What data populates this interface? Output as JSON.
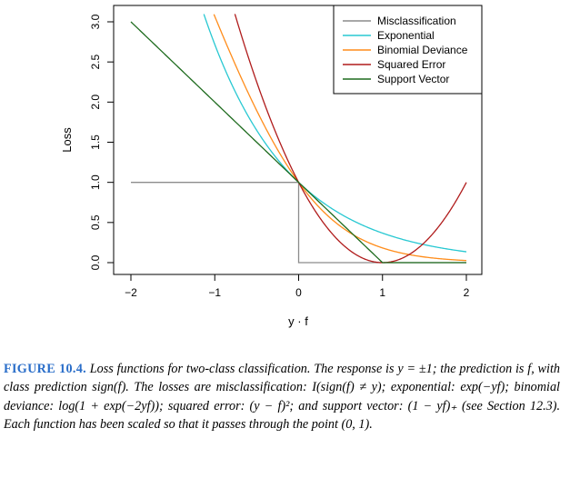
{
  "figure": {
    "label": "FIGURE 10.4.",
    "caption": "Loss functions for two-class classification. The response is y = ±1; the prediction is f, with class prediction sign(f). The losses are misclassification: I(sign(f) ≠ y); exponential: exp(−yf); binomial deviance: log(1 + exp(−2yf)); squared error: (y − f)²; and support vector: (1 − yf)₊ (see Section 12.3). Each function has been scaled so that it passes through the point (0, 1)."
  },
  "chart_data": {
    "type": "line",
    "title": "",
    "xlabel": "y · f",
    "ylabel": "Loss",
    "xlim": [
      -2,
      2
    ],
    "ylim": [
      0,
      3.0
    ],
    "x_ticks": [
      "−2",
      "−1",
      "0",
      "1",
      "2"
    ],
    "y_ticks": [
      "0.0",
      "0.5",
      "1.0",
      "1.5",
      "2.0",
      "2.5",
      "3.0"
    ],
    "legend_position": "top-right",
    "series": [
      {
        "name": "Misclassification",
        "color": "#8c8c8c",
        "formula": "misclassification"
      },
      {
        "name": "Exponential",
        "color": "#28c8d2",
        "formula": "exponential"
      },
      {
        "name": "Binomial Deviance",
        "color": "#ff8c1a",
        "formula": "binomial"
      },
      {
        "name": "Squared Error",
        "color": "#b01c1c",
        "formula": "squared"
      },
      {
        "name": "Support Vector",
        "color": "#1e6b1e",
        "formula": "hinge"
      }
    ]
  }
}
